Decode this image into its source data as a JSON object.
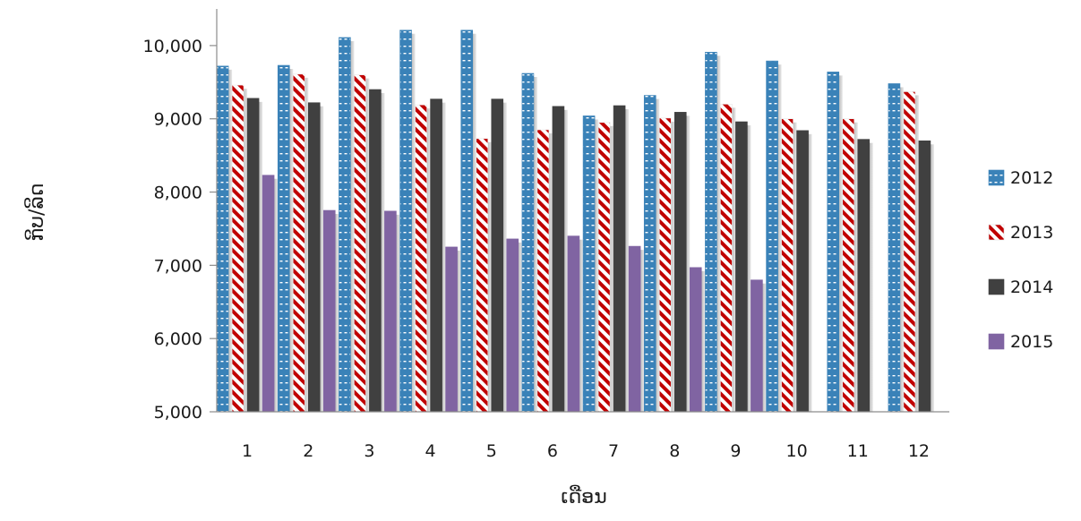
{
  "chart_data": {
    "type": "bar",
    "title": "",
    "xlabel": "ເດືອນ",
    "ylabel": "ກິບ/ລິດ",
    "ylim": [
      5000,
      10500
    ],
    "yticks": [
      5000,
      6000,
      7000,
      8000,
      9000,
      10000
    ],
    "ytick_labels": [
      "5,000",
      "6,000",
      "7,000",
      "8,000",
      "9,000",
      "10,000"
    ],
    "categories": [
      "1",
      "2",
      "3",
      "4",
      "5",
      "6",
      "7",
      "8",
      "9",
      "10",
      "11",
      "12"
    ],
    "legend_position": "right",
    "grid": false,
    "series": [
      {
        "name": "2012",
        "color": "#3a82b8",
        "pattern": "dashes",
        "values": [
          9720,
          9730,
          10110,
          10210,
          10210,
          9620,
          9040,
          9320,
          9910,
          9790,
          9640,
          9480
        ]
      },
      {
        "name": "2013",
        "color": "#c00000",
        "pattern": "diagonal-stripes",
        "values": [
          9460,
          9610,
          9600,
          9190,
          8730,
          8850,
          8950,
          9010,
          9200,
          9000,
          9000,
          9370
        ]
      },
      {
        "name": "2014",
        "color": "#404040",
        "pattern": "solid",
        "values": [
          9280,
          9220,
          9400,
          9270,
          9270,
          9170,
          9180,
          9090,
          8960,
          8840,
          8720,
          8700
        ]
      },
      {
        "name": "2015",
        "color": "#8064a2",
        "pattern": "solid",
        "values": [
          8230,
          7750,
          7740,
          7250,
          7360,
          7400,
          7260,
          6970,
          6800,
          null,
          null,
          null
        ]
      }
    ]
  }
}
